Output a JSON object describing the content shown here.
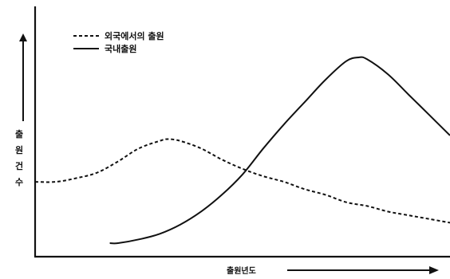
{
  "chart_data": {
    "type": "line",
    "title": "",
    "xlabel": "출원년도",
    "ylabel": "출원건수",
    "xticks_shown": false,
    "yticks_shown": false,
    "grid": false,
    "legend_position": "top-left",
    "series": [
      {
        "name": "외국에서의 출원",
        "style": "dashed",
        "color": "#111111",
        "x": [
          0.0,
          0.05,
          0.1,
          0.15,
          0.2,
          0.25,
          0.3,
          0.32,
          0.35,
          0.4,
          0.45,
          0.5,
          0.55,
          0.6,
          0.65,
          0.7,
          0.75,
          0.8,
          0.85,
          0.9,
          0.95,
          1.0
        ],
        "y": [
          0.33,
          0.33,
          0.35,
          0.38,
          0.44,
          0.51,
          0.55,
          0.56,
          0.55,
          0.51,
          0.45,
          0.4,
          0.36,
          0.33,
          0.29,
          0.26,
          0.22,
          0.2,
          0.17,
          0.15,
          0.13,
          0.11
        ]
      },
      {
        "name": "국내출원",
        "style": "solid",
        "color": "#111111",
        "x": [
          0.18,
          0.2,
          0.25,
          0.3,
          0.35,
          0.4,
          0.45,
          0.5,
          0.55,
          0.6,
          0.65,
          0.7,
          0.75,
          0.78,
          0.8,
          0.85,
          0.9,
          0.95,
          1.0
        ],
        "y": [
          0.0,
          0.0,
          0.02,
          0.05,
          0.1,
          0.17,
          0.26,
          0.37,
          0.51,
          0.64,
          0.76,
          0.88,
          0.98,
          1.0,
          0.99,
          0.91,
          0.8,
          0.69,
          0.58
        ]
      }
    ]
  }
}
